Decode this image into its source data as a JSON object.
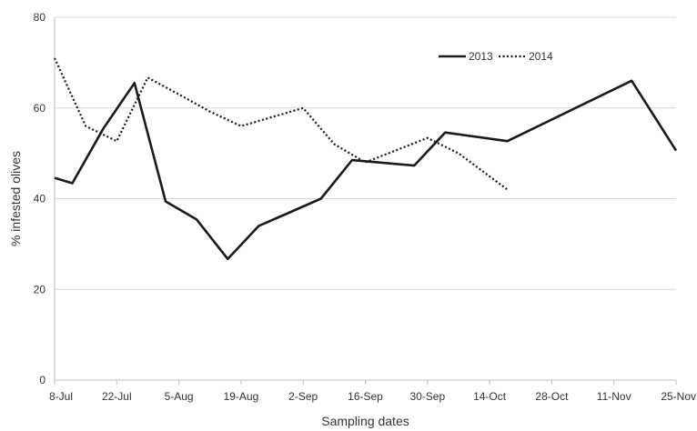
{
  "chart_data": {
    "type": "line",
    "xlabel": "Sampling dates",
    "ylabel": "% infested olives",
    "ylim": [
      0,
      80
    ],
    "yticks": [
      0,
      20,
      40,
      60,
      80
    ],
    "xticks": [
      "8-Jul",
      "22-Jul",
      "5-Aug",
      "19-Aug",
      "2-Sep",
      "16-Sep",
      "30-Sep",
      "14-Oct",
      "28-Oct",
      "11-Nov",
      "25-Nov"
    ],
    "xrange_days": [
      0,
      140
    ],
    "grid": true,
    "legend_position": "top-right",
    "series": [
      {
        "name": "2013",
        "style": "solid",
        "color": "#1a1a1a",
        "points": [
          {
            "x": "8-Jul",
            "y": 44.6
          },
          {
            "x": "12-Jul",
            "y": 43.4
          },
          {
            "x": "19-Jul",
            "y": 55.5
          },
          {
            "x": "26-Jul",
            "y": 65.5
          },
          {
            "x": "2-Aug",
            "y": 39.4
          },
          {
            "x": "9-Aug",
            "y": 35.4
          },
          {
            "x": "16-Aug",
            "y": 26.7
          },
          {
            "x": "23-Aug",
            "y": 34.0
          },
          {
            "x": "30-Aug",
            "y": 37.0
          },
          {
            "x": "6-Sep",
            "y": 40.0
          },
          {
            "x": "13-Sep",
            "y": 48.5
          },
          {
            "x": "27-Sep",
            "y": 47.3
          },
          {
            "x": "4-Oct",
            "y": 54.6
          },
          {
            "x": "18-Oct",
            "y": 52.7
          },
          {
            "x": "15-Nov",
            "y": 66.0
          },
          {
            "x": "25-Nov",
            "y": 50.6
          }
        ]
      },
      {
        "name": "2014",
        "style": "dotted",
        "color": "#1a1a1a",
        "points": [
          {
            "x": "8-Jul",
            "y": 71.0
          },
          {
            "x": "15-Jul",
            "y": 56.0
          },
          {
            "x": "22-Jul",
            "y": 52.7
          },
          {
            "x": "29-Jul",
            "y": 66.7
          },
          {
            "x": "5-Aug",
            "y": 63.0
          },
          {
            "x": "12-Aug",
            "y": 59.2
          },
          {
            "x": "19-Aug",
            "y": 56.0
          },
          {
            "x": "2-Sep",
            "y": 60.0
          },
          {
            "x": "9-Sep",
            "y": 52.0
          },
          {
            "x": "16-Sep",
            "y": 48.0
          },
          {
            "x": "30-Sep",
            "y": 53.4
          },
          {
            "x": "7-Oct",
            "y": 50.0
          },
          {
            "x": "18-Oct",
            "y": 42.0
          }
        ]
      }
    ]
  }
}
